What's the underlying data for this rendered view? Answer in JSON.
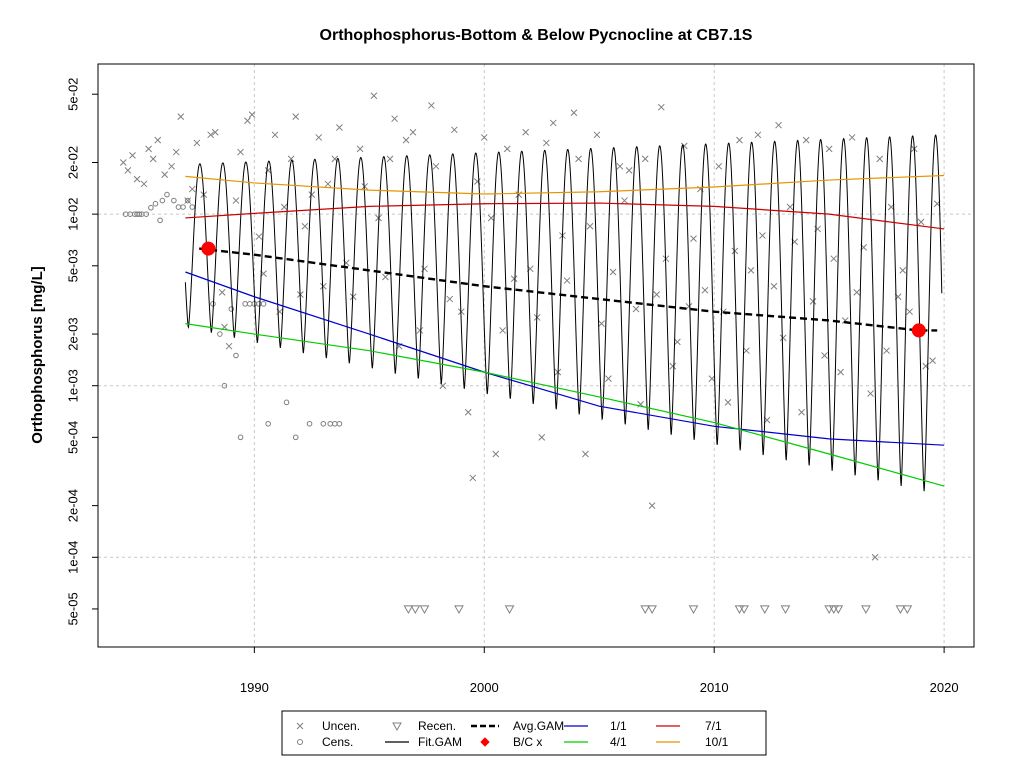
{
  "chart_data": {
    "type": "scatter",
    "title": "Orthophosphorus-Bottom & Below Pycnocline at CB7.1S",
    "ylabel": "Orthophosphorus [mg/L]",
    "xlabel": "",
    "y_scale": "log",
    "xlim": [
      1983.2,
      2021.3
    ],
    "ylim": [
      3e-05,
      0.075
    ],
    "grid": true,
    "x_ticks": [
      1990,
      2000,
      2010,
      2020
    ],
    "x_tick_labels": [
      "1990",
      "2000",
      "2010",
      "2020"
    ],
    "y_ticks": [
      5e-05,
      0.0001,
      0.0002,
      0.0005,
      0.001,
      0.002,
      0.005,
      0.01,
      0.02,
      0.05
    ],
    "y_tick_labels": [
      "5e-05",
      "1e-04",
      "2e-04",
      "5e-04",
      "1e-03",
      "2e-03",
      "5e-03",
      "1e-02",
      "2e-02",
      "5e-02"
    ],
    "legend": {
      "placement": "bottom",
      "entries": [
        {
          "label": "Uncen.",
          "symbol": "x",
          "color": "#808080"
        },
        {
          "label": "Cens.",
          "symbol": "circle",
          "color": "#808080"
        },
        {
          "label": "Recen.",
          "symbol": "triangle-down",
          "color": "#808080"
        },
        {
          "label": "Fit.GAM",
          "symbol": "line",
          "color": "#000000"
        },
        {
          "label": "Avg.GAM",
          "symbol": "dashed",
          "color": "#000000"
        },
        {
          "label": "B/C x",
          "symbol": "dot",
          "color": "#ff0000"
        },
        {
          "label": "1/1",
          "symbol": "line",
          "color": "#0000cd"
        },
        {
          "label": "4/1",
          "symbol": "line",
          "color": "#00cc00"
        },
        {
          "label": "7/1",
          "symbol": "line",
          "color": "#cc0000"
        },
        {
          "label": "10/1",
          "symbol": "line",
          "color": "#e69500"
        }
      ]
    },
    "series": [
      {
        "name": "10/1",
        "color": "#e69500",
        "x": [
          1987.0,
          1990.0,
          1995.0,
          2000.0,
          2005.0,
          2010.0,
          2015.0,
          2020.0
        ],
        "y": [
          0.0166,
          0.0152,
          0.0138,
          0.0131,
          0.0135,
          0.0144,
          0.0158,
          0.0168
        ]
      },
      {
        "name": "7/1",
        "color": "#cc0000",
        "x": [
          1987.0,
          1990.0,
          1995.0,
          2000.0,
          2005.0,
          2010.0,
          2015.0,
          2020.0
        ],
        "y": [
          0.0095,
          0.0101,
          0.0111,
          0.0115,
          0.0116,
          0.0111,
          0.01,
          0.0082
        ]
      },
      {
        "name": "Avg.GAM",
        "color": "#000000",
        "x": [
          1987.6,
          1990.0,
          1995.0,
          2000.0,
          2005.0,
          2010.0,
          2015.0,
          2018.9,
          2019.7
        ],
        "y": [
          0.0063,
          0.0058,
          0.0047,
          0.0038,
          0.0032,
          0.0027,
          0.0024,
          0.0021,
          0.0021
        ]
      },
      {
        "name": "1/1",
        "color": "#0000cd",
        "x": [
          1987.0,
          1990.0,
          1995.0,
          2000.0,
          2005.0,
          2010.0,
          2015.0,
          2020.0
        ],
        "y": [
          0.0046,
          0.0033,
          0.002,
          0.0012,
          0.00076,
          0.00058,
          0.00049,
          0.00045
        ]
      },
      {
        "name": "4/1",
        "color": "#00cc00",
        "x": [
          1987.0,
          1990.0,
          1995.0,
          2000.0,
          2005.0,
          2010.0,
          2015.0,
          2020.0
        ],
        "y": [
          0.0023,
          0.002,
          0.0016,
          0.0012,
          0.00086,
          0.00061,
          0.0004,
          0.00026
        ]
      }
    ],
    "fit_gam": {
      "name": "Fit.GAM",
      "color": "#000000",
      "x_start": 1987.0,
      "x_end": 2019.9,
      "period_years": 1.0,
      "peak_phase": 0.63,
      "peaks_start": 0.0195,
      "peaks_end": 0.029,
      "troughs_start": 0.0022,
      "troughs_end": 0.00023
    },
    "bc_points": [
      {
        "x": 1988.0,
        "y": 0.0063
      },
      {
        "x": 2018.9,
        "y": 0.0021
      }
    ],
    "uncensored_points": [
      [
        1984.3,
        0.02
      ],
      [
        1984.5,
        0.018
      ],
      [
        1984.7,
        0.022
      ],
      [
        1984.9,
        0.016
      ],
      [
        1985.2,
        0.015
      ],
      [
        1985.4,
        0.024
      ],
      [
        1985.6,
        0.021
      ],
      [
        1985.8,
        0.027
      ],
      [
        1986.1,
        0.017
      ],
      [
        1986.4,
        0.019
      ],
      [
        1986.6,
        0.023
      ],
      [
        1986.8,
        0.037
      ],
      [
        1987.1,
        0.012
      ],
      [
        1987.3,
        0.014
      ],
      [
        1987.5,
        0.026
      ],
      [
        1987.8,
        0.013
      ],
      [
        1988.1,
        0.029
      ],
      [
        1988.3,
        0.03
      ],
      [
        1988.6,
        0.0035
      ],
      [
        1988.7,
        0.0022
      ],
      [
        1988.9,
        0.0017
      ],
      [
        1989.2,
        0.012
      ],
      [
        1989.4,
        0.023
      ],
      [
        1989.7,
        0.035
      ],
      [
        1989.9,
        0.038
      ],
      [
        1990.2,
        0.0074
      ],
      [
        1990.4,
        0.0045
      ],
      [
        1990.6,
        0.018
      ],
      [
        1990.9,
        0.029
      ],
      [
        1991.1,
        0.0027
      ],
      [
        1991.3,
        0.011
      ],
      [
        1991.6,
        0.021
      ],
      [
        1991.8,
        0.037
      ],
      [
        1992.0,
        0.0034
      ],
      [
        1992.2,
        0.0085
      ],
      [
        1992.5,
        0.013
      ],
      [
        1992.8,
        0.028
      ],
      [
        1993.0,
        0.0038
      ],
      [
        1993.2,
        0.015
      ],
      [
        1993.5,
        0.021
      ],
      [
        1993.7,
        0.032
      ],
      [
        1994.0,
        0.0052
      ],
      [
        1994.3,
        0.0033
      ],
      [
        1994.6,
        0.024
      ],
      [
        1994.8,
        0.0145
      ],
      [
        1995.2,
        0.049
      ],
      [
        1995.4,
        0.0095
      ],
      [
        1995.7,
        0.0043
      ],
      [
        1995.9,
        0.021
      ],
      [
        1996.1,
        0.036
      ],
      [
        1996.3,
        0.0017
      ],
      [
        1996.6,
        0.027
      ],
      [
        1996.9,
        0.03
      ],
      [
        1997.2,
        0.0021
      ],
      [
        1997.4,
        0.0048
      ],
      [
        1997.7,
        0.043
      ],
      [
        1997.9,
        0.019
      ],
      [
        1998.2,
        0.001
      ],
      [
        1998.5,
        0.0032
      ],
      [
        1998.7,
        0.031
      ],
      [
        1999.0,
        0.0027
      ],
      [
        1999.3,
        0.0007
      ],
      [
        1999.5,
        0.00029
      ],
      [
        1999.7,
        0.0155
      ],
      [
        2000.0,
        0.028
      ],
      [
        2000.3,
        0.0095
      ],
      [
        2000.5,
        0.0004
      ],
      [
        2000.8,
        0.0021
      ],
      [
        2001.0,
        0.024
      ],
      [
        2001.3,
        0.0042
      ],
      [
        2001.5,
        0.013
      ],
      [
        2001.8,
        0.03
      ],
      [
        2002.0,
        0.0048
      ],
      [
        2002.3,
        0.0025
      ],
      [
        2002.5,
        0.0005
      ],
      [
        2002.7,
        0.026
      ],
      [
        2003.0,
        0.034
      ],
      [
        2003.2,
        0.0012
      ],
      [
        2003.4,
        0.0075
      ],
      [
        2003.6,
        0.0041
      ],
      [
        2003.9,
        0.039
      ],
      [
        2004.1,
        0.021
      ],
      [
        2004.4,
        0.0004
      ],
      [
        2004.6,
        0.0085
      ],
      [
        2004.9,
        0.029
      ],
      [
        2005.1,
        0.0023
      ],
      [
        2005.4,
        0.0011
      ],
      [
        2005.6,
        0.0046
      ],
      [
        2005.9,
        0.019
      ],
      [
        2006.1,
        0.012
      ],
      [
        2006.3,
        0.018
      ],
      [
        2006.6,
        0.0028
      ],
      [
        2006.8,
        0.00078
      ],
      [
        2007.0,
        0.021
      ],
      [
        2007.3,
        0.0002
      ],
      [
        2007.5,
        0.0034
      ],
      [
        2007.7,
        0.042
      ],
      [
        2007.9,
        0.0055
      ],
      [
        2008.2,
        0.0013
      ],
      [
        2008.4,
        0.0018
      ],
      [
        2008.7,
        0.025
      ],
      [
        2008.9,
        0.0029
      ],
      [
        2009.1,
        0.0072
      ],
      [
        2009.4,
        0.014
      ],
      [
        2009.6,
        0.0036
      ],
      [
        2009.9,
        0.0011
      ],
      [
        2010.2,
        0.019
      ],
      [
        2010.4,
        0.0027
      ],
      [
        2010.6,
        0.0008
      ],
      [
        2010.9,
        0.0061
      ],
      [
        2011.1,
        0.027
      ],
      [
        2011.4,
        0.0016
      ],
      [
        2011.6,
        0.0047
      ],
      [
        2011.9,
        0.029
      ],
      [
        2012.1,
        0.0075
      ],
      [
        2012.3,
        0.00063
      ],
      [
        2012.6,
        0.0038
      ],
      [
        2012.8,
        0.033
      ],
      [
        2013.0,
        0.0019
      ],
      [
        2013.3,
        0.011
      ],
      [
        2013.5,
        0.0069
      ],
      [
        2013.8,
        0.0007
      ],
      [
        2014.0,
        0.027
      ],
      [
        2014.3,
        0.0031
      ],
      [
        2014.5,
        0.0082
      ],
      [
        2014.8,
        0.0015
      ],
      [
        2015.0,
        0.024
      ],
      [
        2015.2,
        0.0055
      ],
      [
        2015.5,
        0.0012
      ],
      [
        2015.7,
        0.0024
      ],
      [
        2016.0,
        0.028
      ],
      [
        2016.2,
        0.0035
      ],
      [
        2016.5,
        0.0064
      ],
      [
        2016.8,
        0.0009
      ],
      [
        2017.0,
        0.0001
      ],
      [
        2017.2,
        0.021
      ],
      [
        2017.5,
        0.0016
      ],
      [
        2017.7,
        0.011
      ],
      [
        2018.0,
        0.0033
      ],
      [
        2018.2,
        0.0047
      ],
      [
        2018.5,
        0.0027
      ],
      [
        2018.7,
        0.024
      ],
      [
        2019.0,
        0.009
      ],
      [
        2019.2,
        0.0013
      ],
      [
        2019.5,
        0.0014
      ],
      [
        2019.7,
        0.0115
      ]
    ],
    "censored_points": [
      [
        1984.4,
        0.01
      ],
      [
        1984.6,
        0.01
      ],
      [
        1984.8,
        0.01
      ],
      [
        1984.9,
        0.01
      ],
      [
        1985.0,
        0.01
      ],
      [
        1985.1,
        0.01
      ],
      [
        1985.3,
        0.01
      ],
      [
        1985.5,
        0.0109
      ],
      [
        1985.7,
        0.0115
      ],
      [
        1985.9,
        0.0092
      ],
      [
        1986.0,
        0.012
      ],
      [
        1986.2,
        0.013
      ],
      [
        1986.5,
        0.012
      ],
      [
        1986.7,
        0.011
      ],
      [
        1986.9,
        0.011
      ],
      [
        1987.1,
        0.012
      ],
      [
        1987.3,
        0.011
      ],
      [
        1988.2,
        0.003
      ],
      [
        1988.5,
        0.002
      ],
      [
        1988.7,
        0.001
      ],
      [
        1989.0,
        0.0028
      ],
      [
        1989.2,
        0.0015
      ],
      [
        1989.4,
        0.0005
      ],
      [
        1989.6,
        0.003
      ],
      [
        1989.8,
        0.003
      ],
      [
        1990.0,
        0.003
      ],
      [
        1990.2,
        0.003
      ],
      [
        1990.4,
        0.003
      ],
      [
        1990.6,
        0.0006
      ],
      [
        1991.4,
        0.0008
      ],
      [
        1991.8,
        0.0005
      ],
      [
        1992.4,
        0.0006
      ],
      [
        1993.0,
        0.0006
      ],
      [
        1993.3,
        0.0006
      ],
      [
        1993.5,
        0.0006
      ],
      [
        1993.7,
        0.0006
      ]
    ],
    "recensored_points": [
      [
        1996.7,
        5e-05
      ],
      [
        1997.0,
        5e-05
      ],
      [
        1997.4,
        5e-05
      ],
      [
        1998.9,
        5e-05
      ],
      [
        2001.1,
        5e-05
      ],
      [
        2007.0,
        5e-05
      ],
      [
        2007.3,
        5e-05
      ],
      [
        2009.1,
        5e-05
      ],
      [
        2011.1,
        5e-05
      ],
      [
        2011.3,
        5e-05
      ],
      [
        2012.2,
        5e-05
      ],
      [
        2013.1,
        5e-05
      ],
      [
        2015.0,
        5e-05
      ],
      [
        2015.2,
        5e-05
      ],
      [
        2015.4,
        5e-05
      ],
      [
        2016.6,
        5e-05
      ],
      [
        2018.1,
        5e-05
      ],
      [
        2018.4,
        5e-05
      ]
    ]
  }
}
